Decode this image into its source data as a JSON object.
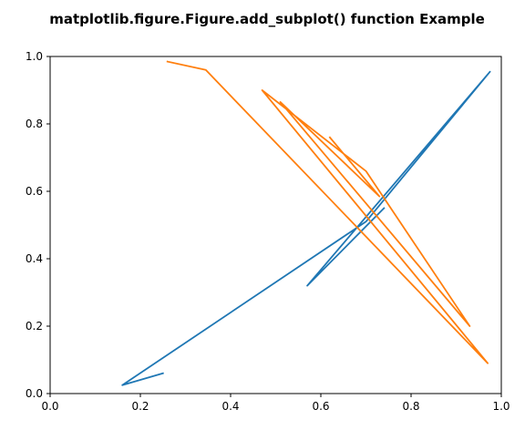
{
  "chart_data": {
    "type": "line",
    "title": "matplotlib.figure.Figure.add_subplot() function Example",
    "xlabel": "",
    "ylabel": "",
    "xlim": [
      0.0,
      1.0
    ],
    "ylim": [
      0.0,
      1.0
    ],
    "xticks": [
      "0.0",
      "0.2",
      "0.4",
      "0.6",
      "0.8",
      "1.0"
    ],
    "yticks": [
      "0.0",
      "0.2",
      "0.4",
      "0.6",
      "0.8",
      "1.0"
    ],
    "grid": false,
    "legend": "none",
    "series": [
      {
        "color": "#1f77b4",
        "x": [
          0.25,
          0.16,
          0.7,
          0.975,
          0.57,
          0.74
        ],
        "y": [
          0.06,
          0.025,
          0.51,
          0.955,
          0.32,
          0.55
        ]
      },
      {
        "color": "#ff7f0e",
        "x": [
          0.26,
          0.345,
          0.97,
          0.47,
          0.7,
          0.93,
          0.51,
          0.73,
          0.62
        ],
        "y": [
          0.985,
          0.96,
          0.09,
          0.9,
          0.66,
          0.2,
          0.865,
          0.585,
          0.76
        ]
      }
    ]
  }
}
